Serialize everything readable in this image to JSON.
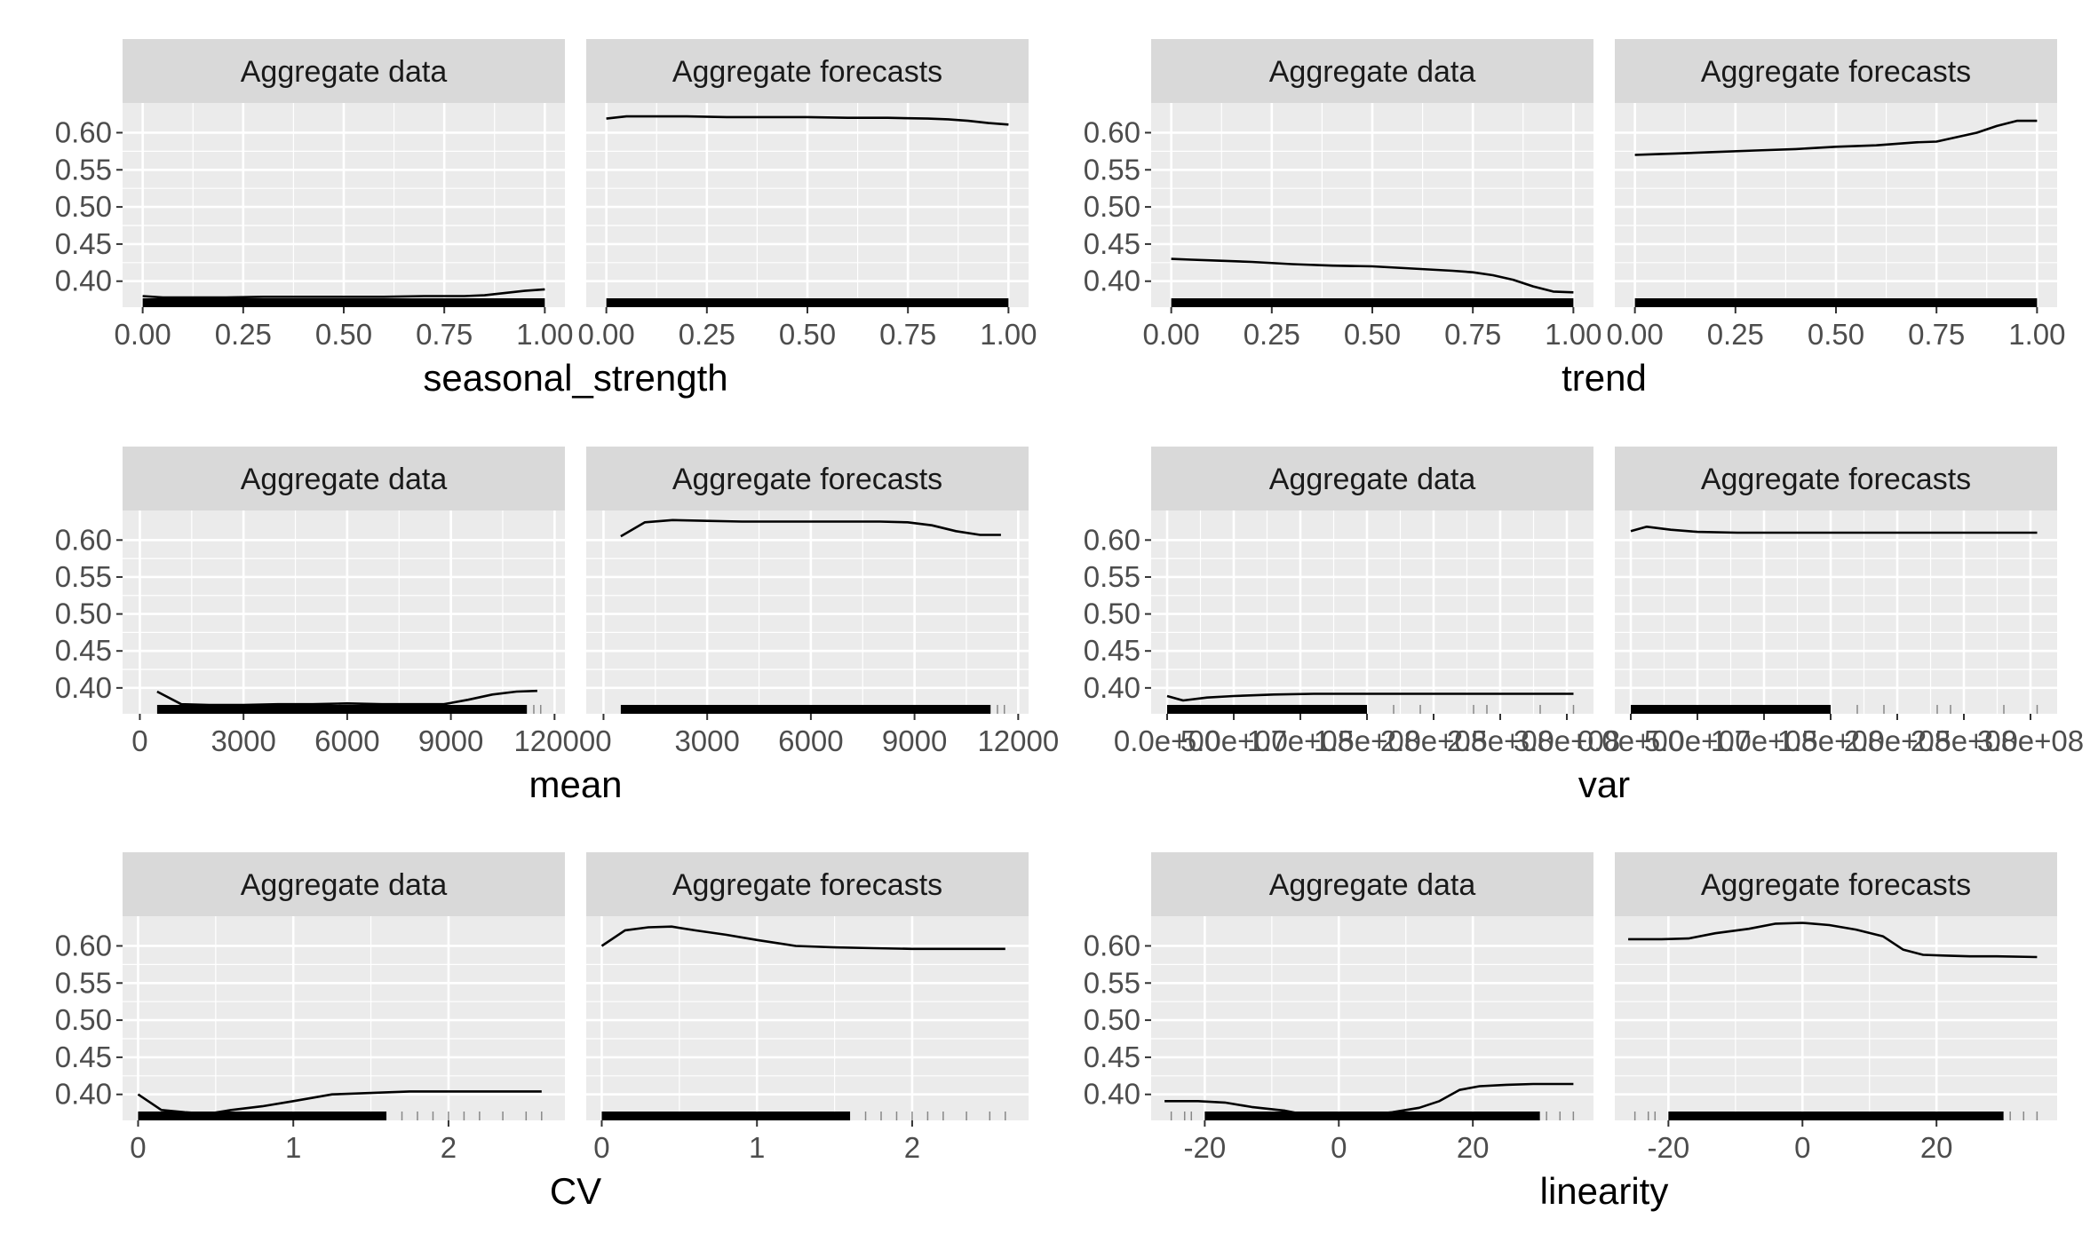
{
  "facet_labels": [
    "Aggregate data",
    "Aggregate forecasts"
  ],
  "y_axis": {
    "ticks": [
      0.4,
      0.45,
      0.5,
      0.55,
      0.6
    ],
    "tick_labels": [
      "0.40",
      "0.45",
      "0.50",
      "0.55",
      "0.60"
    ],
    "range": [
      0.365,
      0.64
    ]
  },
  "colors": {
    "panel_bg": "#ebebeb",
    "strip_bg": "#d9d9d9",
    "grid": "#ffffff",
    "line": "#000000",
    "rug": "#000000"
  },
  "chart_data": [
    {
      "type": "line",
      "xlabel": "seasonal_strength",
      "xlim": [
        -0.05,
        1.05
      ],
      "x_ticks": [
        0,
        0.25,
        0.5,
        0.75,
        1
      ],
      "x_tick_labels": [
        "0.00",
        "0.25",
        "0.50",
        "0.75",
        "1.00"
      ],
      "rug": {
        "ranges": [
          [
            0,
            1
          ]
        ],
        "sparse": []
      },
      "series": [
        {
          "facet": "Aggregate data",
          "x": [
            0,
            0.05,
            0.1,
            0.2,
            0.3,
            0.4,
            0.5,
            0.6,
            0.7,
            0.8,
            0.85,
            0.9,
            0.95,
            1.0
          ],
          "y": [
            0.38,
            0.378,
            0.378,
            0.378,
            0.379,
            0.379,
            0.379,
            0.379,
            0.38,
            0.38,
            0.381,
            0.384,
            0.387,
            0.389
          ]
        },
        {
          "facet": "Aggregate forecasts",
          "x": [
            0,
            0.05,
            0.1,
            0.2,
            0.3,
            0.4,
            0.5,
            0.6,
            0.7,
            0.8,
            0.85,
            0.9,
            0.95,
            1.0
          ],
          "y": [
            0.619,
            0.622,
            0.622,
            0.622,
            0.621,
            0.621,
            0.621,
            0.62,
            0.62,
            0.619,
            0.618,
            0.616,
            0.613,
            0.611
          ]
        }
      ]
    },
    {
      "type": "line",
      "xlabel": "trend",
      "xlim": [
        -0.05,
        1.05
      ],
      "x_ticks": [
        0,
        0.25,
        0.5,
        0.75,
        1
      ],
      "x_tick_labels": [
        "0.00",
        "0.25",
        "0.50",
        "0.75",
        "1.00"
      ],
      "rug": {
        "ranges": [
          [
            0,
            1
          ]
        ],
        "sparse": []
      },
      "series": [
        {
          "facet": "Aggregate data",
          "x": [
            0,
            0.05,
            0.1,
            0.2,
            0.3,
            0.4,
            0.5,
            0.6,
            0.7,
            0.75,
            0.8,
            0.85,
            0.9,
            0.95,
            1.0
          ],
          "y": [
            0.43,
            0.429,
            0.428,
            0.426,
            0.423,
            0.421,
            0.42,
            0.417,
            0.414,
            0.412,
            0.408,
            0.402,
            0.393,
            0.386,
            0.385
          ]
        },
        {
          "facet": "Aggregate forecasts",
          "x": [
            0,
            0.05,
            0.1,
            0.2,
            0.3,
            0.4,
            0.5,
            0.6,
            0.7,
            0.75,
            0.8,
            0.85,
            0.9,
            0.95,
            1.0
          ],
          "y": [
            0.57,
            0.571,
            0.572,
            0.574,
            0.576,
            0.578,
            0.581,
            0.583,
            0.587,
            0.588,
            0.594,
            0.6,
            0.609,
            0.616,
            0.616
          ]
        }
      ]
    },
    {
      "type": "line",
      "xlabel": "mean",
      "xlim": [
        -500,
        12300
      ],
      "x_ticks": [
        0,
        3000,
        6000,
        9000,
        12000
      ],
      "x_tick_labels": [
        "0",
        "3000",
        "6000",
        "9000",
        "12000"
      ],
      "rug": {
        "ranges": [
          [
            500,
            11200
          ]
        ],
        "sparse": [
          11400,
          11600
        ]
      },
      "series": [
        {
          "facet": "Aggregate data",
          "x": [
            500,
            1200,
            2000,
            3000,
            4000,
            5000,
            6000,
            7000,
            8000,
            8800,
            9500,
            10200,
            10900,
            11500
          ],
          "y": [
            0.395,
            0.378,
            0.377,
            0.377,
            0.378,
            0.378,
            0.379,
            0.378,
            0.378,
            0.378,
            0.384,
            0.391,
            0.395,
            0.396
          ]
        },
        {
          "facet": "Aggregate forecasts",
          "x": [
            500,
            1200,
            2000,
            3000,
            4000,
            5000,
            6000,
            7000,
            8000,
            8800,
            9500,
            10200,
            10900,
            11500
          ],
          "y": [
            0.605,
            0.624,
            0.627,
            0.626,
            0.625,
            0.625,
            0.625,
            0.625,
            0.625,
            0.624,
            0.62,
            0.612,
            0.607,
            0.607
          ]
        }
      ]
    },
    {
      "type": "line",
      "xlabel": "var",
      "xlim": [
        -12000000.0,
        320000000.0
      ],
      "x_ticks": [
        0,
        50000000.0,
        100000000.0,
        150000000.0,
        200000000.0,
        250000000.0,
        300000000.0
      ],
      "x_tick_labels": [
        "0.0e+00",
        "5.0e+07",
        "1.0e+08",
        "1.5e+08",
        "2.0e+08",
        "2.5e+08",
        "3.0e+08"
      ],
      "rug": {
        "ranges": [
          [
            0,
            150000000.0
          ]
        ],
        "sparse": [
          170000000.0,
          190000000.0,
          230000000.0,
          240000000.0,
          280000000.0,
          305000000.0
        ]
      },
      "series": [
        {
          "facet": "Aggregate data",
          "x": [
            0,
            12000000.0,
            30000000.0,
            50000000.0,
            80000000.0,
            110000000.0,
            150000000.0,
            200000000.0,
            250000000.0,
            305000000.0
          ],
          "y": [
            0.389,
            0.383,
            0.387,
            0.389,
            0.391,
            0.392,
            0.392,
            0.392,
            0.392,
            0.392
          ]
        },
        {
          "facet": "Aggregate forecasts",
          "x": [
            0,
            12000000.0,
            30000000.0,
            50000000.0,
            80000000.0,
            110000000.0,
            150000000.0,
            200000000.0,
            250000000.0,
            305000000.0
          ],
          "y": [
            0.612,
            0.618,
            0.614,
            0.611,
            0.61,
            0.61,
            0.61,
            0.61,
            0.61,
            0.61
          ]
        }
      ]
    },
    {
      "type": "line",
      "xlabel": "CV",
      "xlim": [
        -0.1,
        2.75
      ],
      "x_ticks": [
        0,
        1,
        2
      ],
      "x_tick_labels": [
        "0",
        "1",
        "2"
      ],
      "rug": {
        "ranges": [
          [
            0,
            1.6
          ]
        ],
        "sparse": [
          1.7,
          1.8,
          1.9,
          2.0,
          2.1,
          2.2,
          2.35,
          2.5,
          2.6
        ]
      },
      "series": [
        {
          "facet": "Aggregate data",
          "x": [
            0,
            0.15,
            0.3,
            0.45,
            0.6,
            0.8,
            1.0,
            1.25,
            1.5,
            1.75,
            2.0,
            2.3,
            2.6
          ],
          "y": [
            0.4,
            0.379,
            0.376,
            0.374,
            0.379,
            0.384,
            0.391,
            0.4,
            0.402,
            0.404,
            0.404,
            0.404,
            0.404
          ]
        },
        {
          "facet": "Aggregate forecasts",
          "x": [
            0,
            0.15,
            0.3,
            0.45,
            0.6,
            0.8,
            1.0,
            1.25,
            1.5,
            1.75,
            2.0,
            2.3,
            2.6
          ],
          "y": [
            0.6,
            0.621,
            0.625,
            0.626,
            0.621,
            0.615,
            0.608,
            0.6,
            0.598,
            0.597,
            0.596,
            0.596,
            0.596
          ]
        }
      ]
    },
    {
      "type": "line",
      "xlabel": "linearity",
      "xlim": [
        -28,
        38
      ],
      "x_ticks": [
        -20,
        0,
        20
      ],
      "x_tick_labels": [
        "-20",
        "0",
        "20"
      ],
      "rug": {
        "ranges": [
          [
            -20,
            30
          ]
        ],
        "sparse": [
          -25,
          -23,
          -22,
          31,
          33,
          35
        ]
      },
      "series": [
        {
          "facet": "Aggregate data",
          "x": [
            -26,
            -21,
            -17,
            -13,
            -8,
            -4,
            0,
            4,
            8,
            12,
            15,
            18,
            21,
            25,
            29,
            35
          ],
          "y": [
            0.391,
            0.391,
            0.389,
            0.383,
            0.378,
            0.371,
            0.37,
            0.372,
            0.376,
            0.382,
            0.391,
            0.406,
            0.411,
            0.413,
            0.414,
            0.414
          ]
        },
        {
          "facet": "Aggregate forecasts",
          "x": [
            -26,
            -21,
            -17,
            -13,
            -8,
            -4,
            0,
            4,
            8,
            12,
            15,
            18,
            21,
            25,
            29,
            35
          ],
          "y": [
            0.609,
            0.609,
            0.61,
            0.617,
            0.623,
            0.63,
            0.631,
            0.628,
            0.622,
            0.613,
            0.595,
            0.588,
            0.587,
            0.586,
            0.586,
            0.585
          ]
        }
      ]
    }
  ]
}
